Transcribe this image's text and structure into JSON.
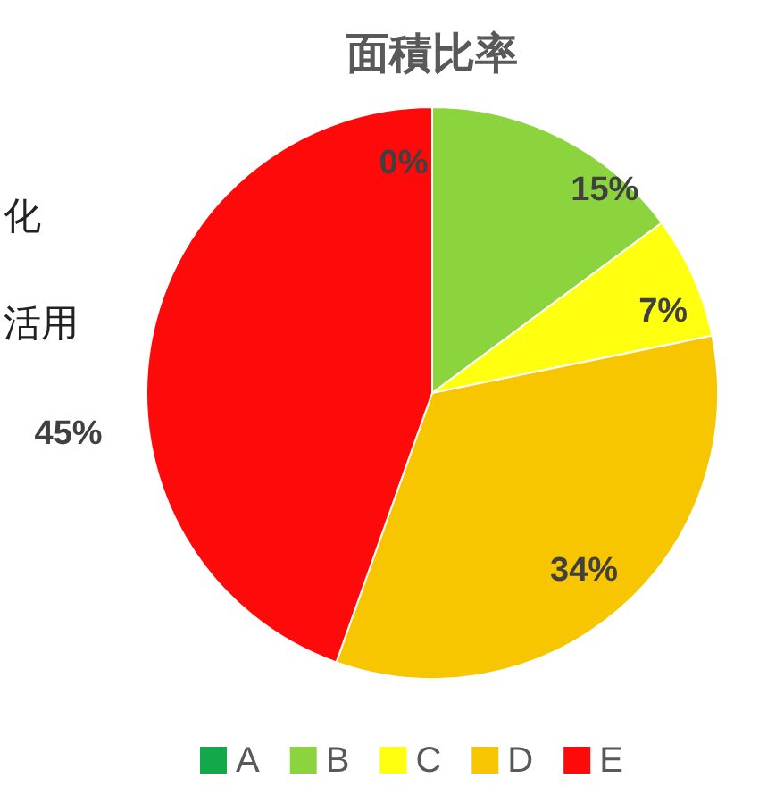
{
  "chart_data": {
    "type": "pie",
    "title": "面積比率",
    "categories": [
      "A",
      "B",
      "C",
      "D",
      "E"
    ],
    "values": [
      0,
      15,
      7,
      34,
      45
    ],
    "colors": [
      "#13a84a",
      "#8cd43e",
      "#ffff10",
      "#f7c600",
      "#ff0a0a"
    ],
    "value_labels": [
      "0%",
      "15%",
      "7%",
      "34%",
      "45%"
    ],
    "legend": "bottom",
    "annotations": [
      "化",
      "活用"
    ]
  }
}
